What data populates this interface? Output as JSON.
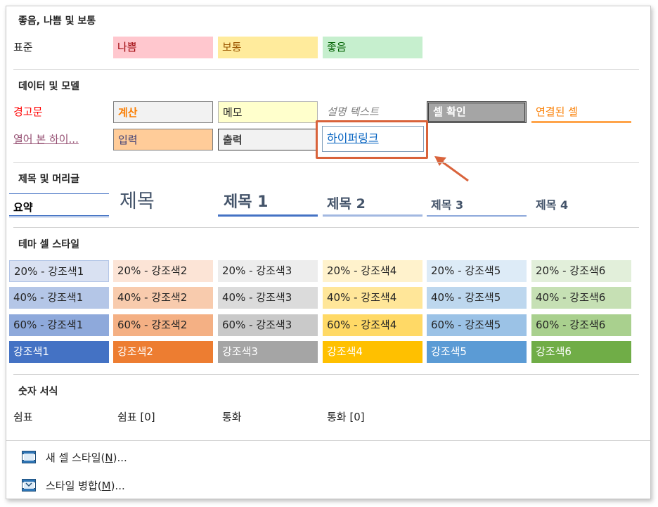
{
  "sections": {
    "good_bad": "좋음, 나쁨 및 보통",
    "data_model": "데이터 및 모델",
    "titles": "제목 및 머리글",
    "theme": "테마 셀 스타일",
    "number": "숫자 서식"
  },
  "good_bad_row": {
    "normal": "표준",
    "bad": "나쁨",
    "neutral": "보통",
    "good": "좋음"
  },
  "data_model_row1": {
    "warning": "경고문",
    "calc": "계산",
    "memo": "메모",
    "explanatory": "설명 텍스트",
    "check": "셀 확인",
    "linked": "연결된 셀"
  },
  "data_model_row2": {
    "followed": "열어 본 하이...",
    "input": "입력",
    "output": "출력",
    "hyperlink": "하이퍼링크"
  },
  "titles_row": {
    "total": "요약",
    "title": "제목",
    "h1": "제목 1",
    "h2": "제목 2",
    "h3": "제목 3",
    "h4": "제목 4"
  },
  "theme_rows": {
    "r20": [
      "20% - 강조색1",
      "20% - 강조색2",
      "20% - 강조색3",
      "20% - 강조색4",
      "20% - 강조색5",
      "20% - 강조색6"
    ],
    "r40": [
      "40% - 강조색1",
      "40% - 강조색2",
      "40% - 강조색3",
      "40% - 강조색4",
      "40% - 강조색5",
      "40% - 강조색6"
    ],
    "r60": [
      "60% - 강조색1",
      "60% - 강조색2",
      "60% - 강조색3",
      "60% - 강조색4",
      "60% - 강조색5",
      "60% - 강조색6"
    ],
    "r100": [
      "강조색1",
      "강조색2",
      "강조색3",
      "강조색4",
      "강조색5",
      "강조색6"
    ]
  },
  "number_row": {
    "comma": "쉼표",
    "comma0": "쉼표 [0]",
    "currency": "통화",
    "currency0": "통화 [0]"
  },
  "menu": {
    "new_style_text": "새 셀 스타일(",
    "new_style_key": "N",
    "new_style_tail": ")...",
    "merge_text": "스타일 병합(",
    "merge_key": "M",
    "merge_tail": ")...",
    "new_style_icon": "new-cell-style-icon",
    "merge_icon": "merge-styles-icon"
  },
  "colors": {
    "highlight": "#d9633b",
    "accent1": "#4472c4",
    "accent2": "#ed7d31",
    "accent3": "#a5a5a5",
    "accent4": "#ffc000",
    "accent5": "#5b9bd5",
    "accent6": "#70ad47"
  }
}
